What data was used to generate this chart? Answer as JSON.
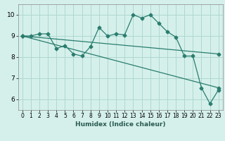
{
  "xlabel": "Humidex (Indice chaleur)",
  "bg_color": "#d5f0eb",
  "grid_color": "#aed8d0",
  "line_color": "#2a7d6f",
  "xlim": [
    -0.5,
    23.5
  ],
  "ylim": [
    5.5,
    10.5
  ],
  "xticks": [
    0,
    1,
    2,
    3,
    4,
    5,
    6,
    7,
    8,
    9,
    10,
    11,
    12,
    13,
    14,
    15,
    16,
    17,
    18,
    19,
    20,
    21,
    22,
    23
  ],
  "yticks": [
    6,
    7,
    8,
    9,
    10
  ],
  "line1_x": [
    0,
    1,
    2,
    3,
    4,
    5,
    6,
    7,
    8,
    9,
    10,
    11,
    12,
    13,
    14,
    15,
    16,
    17,
    18,
    19,
    20,
    21,
    22,
    23
  ],
  "line1_y": [
    9.0,
    9.0,
    9.1,
    9.1,
    8.4,
    8.55,
    8.15,
    8.05,
    8.5,
    9.4,
    9.0,
    9.1,
    9.05,
    10.0,
    9.85,
    10.0,
    9.6,
    9.2,
    8.95,
    8.05,
    8.05,
    6.55,
    5.8,
    6.45
  ],
  "line2_x": [
    0,
    23
  ],
  "line2_y": [
    9.0,
    6.55
  ],
  "line3_x": [
    0,
    23
  ],
  "line3_y": [
    9.0,
    8.15
  ],
  "markersize": 2.5,
  "linewidth": 0.9,
  "tick_fontsize": 5.5,
  "xlabel_fontsize": 6.5,
  "ytick_fontsize": 6.5
}
